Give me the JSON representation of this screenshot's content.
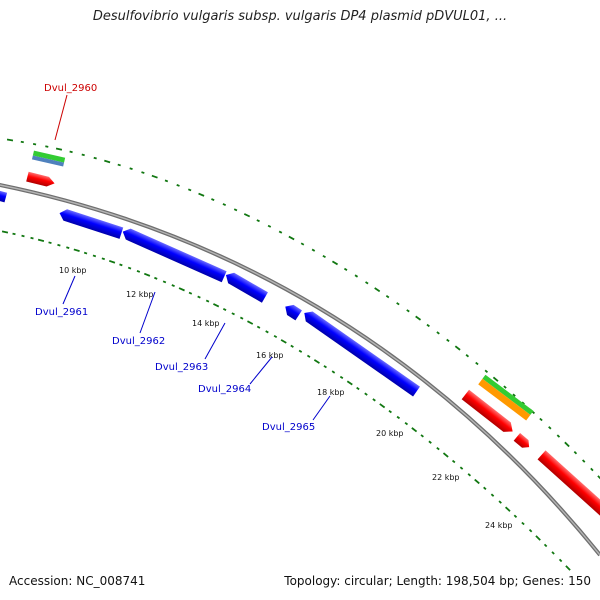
{
  "title": "Desulfovibrio vulgaris subsp. vulgaris DP4 plasmid pDVUL01, ...",
  "accession": "Accession: NC_008741",
  "stats": "Topology: circular; Length: 198,504 bp; Genes: 150",
  "scale_labels": [
    "10 kbp",
    "12 kbp",
    "14 kbp",
    "16 kbp",
    "18 kbp",
    "20 kbp",
    "22 kbp",
    "24 kbp"
  ],
  "gene_labels": [
    {
      "name": "Dvul_2960",
      "color": "#cc0000"
    },
    {
      "name": "Dvul_2961",
      "color": "#0000cc"
    },
    {
      "name": "Dvul_2962",
      "color": "#0000cc"
    },
    {
      "name": "Dvul_2963",
      "color": "#0000cc"
    },
    {
      "name": "Dvul_2964",
      "color": "#0000cc"
    },
    {
      "name": "Dvul_2965",
      "color": "#0000cc"
    }
  ],
  "colors": {
    "backbone": "#888888",
    "cds_forward": "#ff0000",
    "cds_reverse": "#0000ff",
    "feature_green": "#33cc33",
    "feature_orange": "#ff9900",
    "feature_steel": "#4f81bd",
    "dots": "#117711"
  }
}
